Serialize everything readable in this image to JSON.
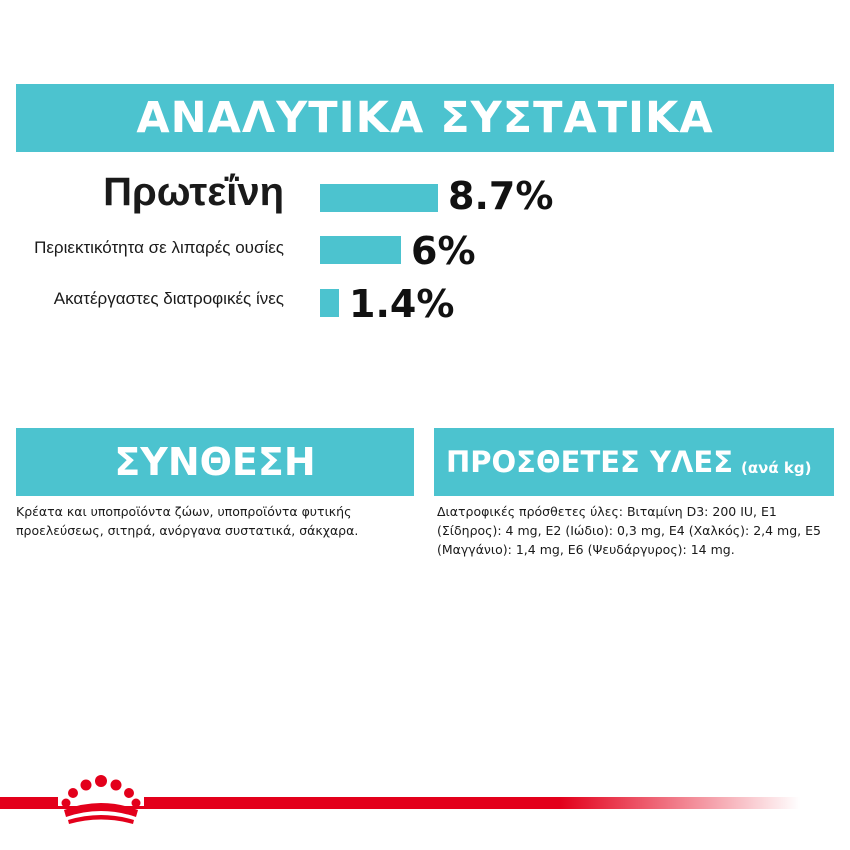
{
  "title": "ΑΝΑΛΥΤΙΚΑ ΣΥΣΤΑΤΙΚΑ",
  "nutrients": [
    {
      "label": "Πρωτεΐνη",
      "value": 8.7,
      "display": "8.7%"
    },
    {
      "label": "Περιεκτικότητα σε λιπαρές ουσίες",
      "value": 6,
      "display": "6%"
    },
    {
      "label": "Ακατέργαστες διατροφικές ίνες",
      "value": 1.4,
      "display": "1.4%"
    }
  ],
  "composition": {
    "heading": "ΣΥΝΘΕΣΗ",
    "text": "Κρέατα και υποπροϊόντα ζώων, υποπροϊόντα φυτικής προελεύσεως, σιτηρά, ανόργανα συστατικά, σάκχαρα."
  },
  "additives": {
    "heading": "ΠΡΟΣΘΕΤΕΣ ΥΛΕΣ",
    "unit": "(ανά kg)",
    "text": "Διατροφικές πρόσθετες ύλες: Βιταμίνη D3: 200 IU, E1 (Σίδηρος): 4 mg, E2 (Ιώδιο): 0,3 mg, E4 (Χαλκός): 2,4 mg, E5 (Μαγγάνιο): 1,4 mg, E6 (Ψευδάργυρος): 14 mg."
  },
  "colors": {
    "accent": "#4cc3cf",
    "brand_red": "#e3001b"
  },
  "logo": {
    "icon": "crown-icon",
    "brand": "Royal Canin"
  }
}
